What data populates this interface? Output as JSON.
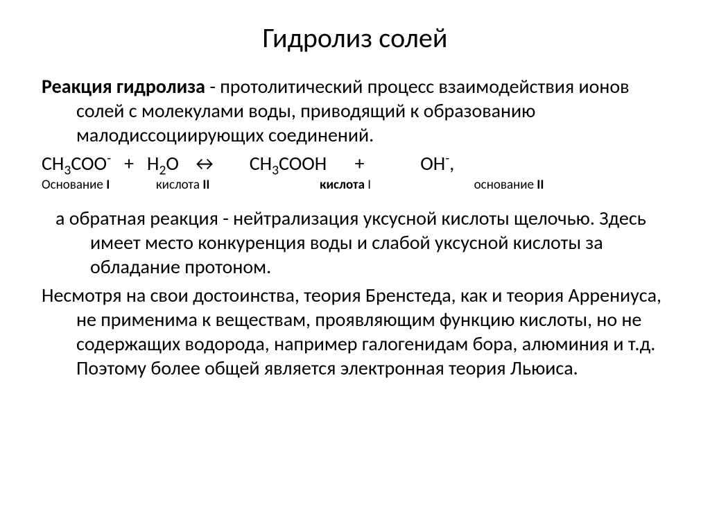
{
  "title": "Гидролиз солей",
  "def_term": "Реакция гидролиза",
  "def_rest": "  - протолитический процесс взаимодействия ионов солей с молекулами воды, приводящий к образованию малодиссоциирующих соединений.",
  "eq": {
    "sp1_pre": "CH",
    "sp1_sub": "3",
    "sp1_post": "COO",
    "sp1_sup": "-",
    "plus1": "+",
    "sp2_pre": "H",
    "sp2_sub": "2",
    "sp2_post": "O",
    "arrow": "↔",
    "sp3_pre": "CH",
    "sp3_sub": "3",
    "sp3_post": "COOH",
    "plus2": "+",
    "sp4_pre": "OH",
    "sp4_sup": "-",
    "comma": ","
  },
  "labels": {
    "l1a": "Основание ",
    "l1b": "I",
    "l2a": "кислота ",
    "l2b": "II",
    "l3a": "кислота",
    "l3b": " I",
    "l4a": "основание ",
    "l4b": "II"
  },
  "para2": " а обратная реакция - нейтрализация  уксусной кислоты щелочью. Здесь имеет место конкуренция  воды и слабой уксусной кислоты за обладание протоном.",
  "para3": "Несмотря на свои достоинства, теория Бренстеда, как и теория Аррениуса, не применима к веществам, проявляющим функцию кислоты, но не содержащих водорода, например галогенидам бора, алюминия и т.д. Поэтому более общей является электронная теория Льюиса.",
  "style": {
    "background_color": "#ffffff",
    "text_color": "#000000",
    "title_fontsize": 40,
    "body_fontsize": 28,
    "label_fontsize": 19,
    "font_family": "Calibri"
  }
}
